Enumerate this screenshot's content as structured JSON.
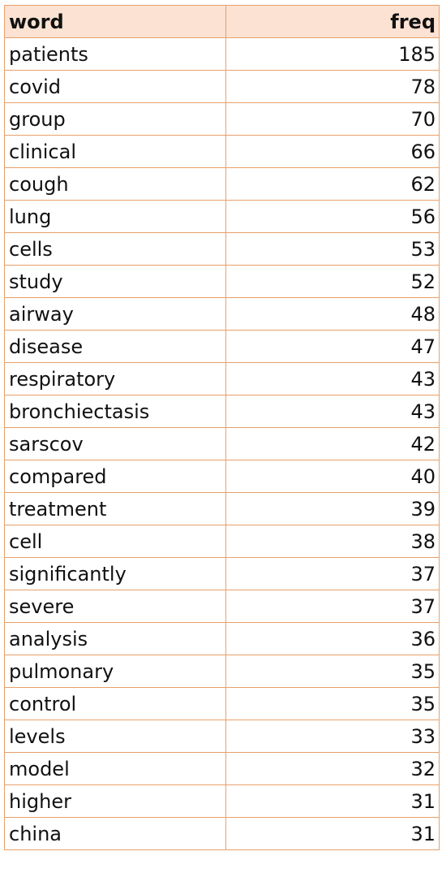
{
  "table": {
    "headers": {
      "word": "word",
      "freq": "freq"
    },
    "rows": [
      {
        "word": "patients",
        "freq": "185"
      },
      {
        "word": "covid",
        "freq": "78"
      },
      {
        "word": "group",
        "freq": "70"
      },
      {
        "word": "clinical",
        "freq": "66"
      },
      {
        "word": "cough",
        "freq": "62"
      },
      {
        "word": "lung",
        "freq": "56"
      },
      {
        "word": "cells",
        "freq": "53"
      },
      {
        "word": "study",
        "freq": "52"
      },
      {
        "word": "airway",
        "freq": "48"
      },
      {
        "word": "disease",
        "freq": "47"
      },
      {
        "word": "respiratory",
        "freq": "43"
      },
      {
        "word": "bronchiectasis",
        "freq": "43"
      },
      {
        "word": "sarscov",
        "freq": "42"
      },
      {
        "word": "compared",
        "freq": "40"
      },
      {
        "word": "treatment",
        "freq": "39"
      },
      {
        "word": "cell",
        "freq": "38"
      },
      {
        "word": "significantly",
        "freq": "37"
      },
      {
        "word": "severe",
        "freq": "37"
      },
      {
        "word": "analysis",
        "freq": "36"
      },
      {
        "word": "pulmonary",
        "freq": "35"
      },
      {
        "word": "control",
        "freq": "35"
      },
      {
        "word": "levels",
        "freq": "33"
      },
      {
        "word": "model",
        "freq": "32"
      },
      {
        "word": "higher",
        "freq": "31"
      },
      {
        "word": "china",
        "freq": "31"
      }
    ]
  },
  "colors": {
    "header_fill": "#fce2d2",
    "grid_line": "#e8a06a",
    "text": "#111111"
  }
}
